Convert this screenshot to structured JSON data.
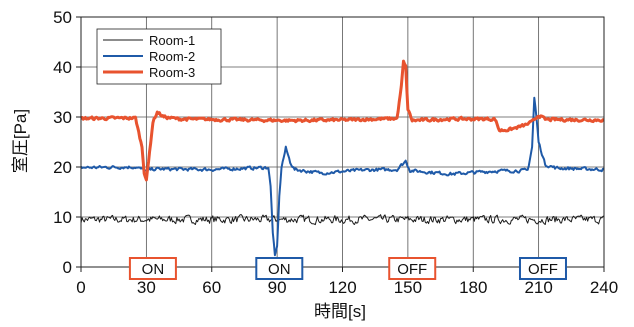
{
  "chart_data": {
    "type": "line",
    "title": "",
    "xlabel": "時間[s]",
    "ylabel": "室圧[Pa]",
    "xlim": [
      0,
      240
    ],
    "ylim": [
      0,
      50
    ],
    "xticks": [
      "0",
      "30",
      "60",
      "90",
      "120",
      "150",
      "180",
      "210",
      "240"
    ],
    "yticks": [
      "0",
      "10",
      "20",
      "30",
      "40",
      "50"
    ],
    "grid": true,
    "legend_position": "top-left",
    "annotations": [
      {
        "label": "ON",
        "x": 33,
        "color": "#e8532f"
      },
      {
        "label": "ON",
        "x": 91,
        "color": "#1f5aa8"
      },
      {
        "label": "OFF",
        "x": 152,
        "color": "#e8532f"
      },
      {
        "label": "OFF",
        "x": 212,
        "color": "#1f5aa8"
      }
    ],
    "series": [
      {
        "name": "Room-1",
        "color": "#1a1a1a",
        "base": 9.4,
        "noise": 1.1,
        "points": [
          [
            0,
            9.5
          ],
          [
            240,
            9.5
          ]
        ]
      },
      {
        "name": "Room-2",
        "color": "#1f5aa8",
        "base": 19.7,
        "noise": 0.45,
        "points": [
          [
            0,
            19.9
          ],
          [
            25,
            20
          ],
          [
            30,
            19.2
          ],
          [
            33,
            19.6
          ],
          [
            60,
            19.5
          ],
          [
            86,
            19.9
          ],
          [
            87,
            16
          ],
          [
            88,
            7
          ],
          [
            89,
            2
          ],
          [
            90,
            4
          ],
          [
            91,
            14
          ],
          [
            92,
            20
          ],
          [
            94,
            23.8
          ],
          [
            96,
            21
          ],
          [
            98,
            19.5
          ],
          [
            110,
            18.8
          ],
          [
            130,
            19.4
          ],
          [
            145,
            19.5
          ],
          [
            149,
            21.2
          ],
          [
            151,
            19.3
          ],
          [
            170,
            18.6
          ],
          [
            190,
            19.2
          ],
          [
            205,
            19.3
          ],
          [
            207,
            24
          ],
          [
            208,
            33.8
          ],
          [
            209,
            30
          ],
          [
            210,
            25
          ],
          [
            213,
            20.5
          ],
          [
            218,
            19.8
          ],
          [
            240,
            19.5
          ]
        ]
      },
      {
        "name": "Room-3",
        "color": "#e8532f",
        "base": 29.6,
        "noise": 0.4,
        "points": [
          [
            0,
            29.7
          ],
          [
            25,
            29.8
          ],
          [
            28,
            24
          ],
          [
            29,
            19
          ],
          [
            30,
            17.5
          ],
          [
            31,
            21
          ],
          [
            33,
            29
          ],
          [
            35,
            31
          ],
          [
            38,
            30
          ],
          [
            45,
            29.6
          ],
          [
            80,
            29.4
          ],
          [
            95,
            29.3
          ],
          [
            120,
            29.4
          ],
          [
            145,
            29.7
          ],
          [
            147,
            36
          ],
          [
            148,
            41
          ],
          [
            149,
            40
          ],
          [
            150,
            31.5
          ],
          [
            152,
            29.3
          ],
          [
            170,
            29.6
          ],
          [
            190,
            29.6
          ],
          [
            192,
            27.3
          ],
          [
            197,
            27.5
          ],
          [
            204,
            28.4
          ],
          [
            207,
            29
          ],
          [
            210,
            30.4
          ],
          [
            213,
            29.5
          ],
          [
            240,
            29.4
          ]
        ]
      }
    ]
  }
}
